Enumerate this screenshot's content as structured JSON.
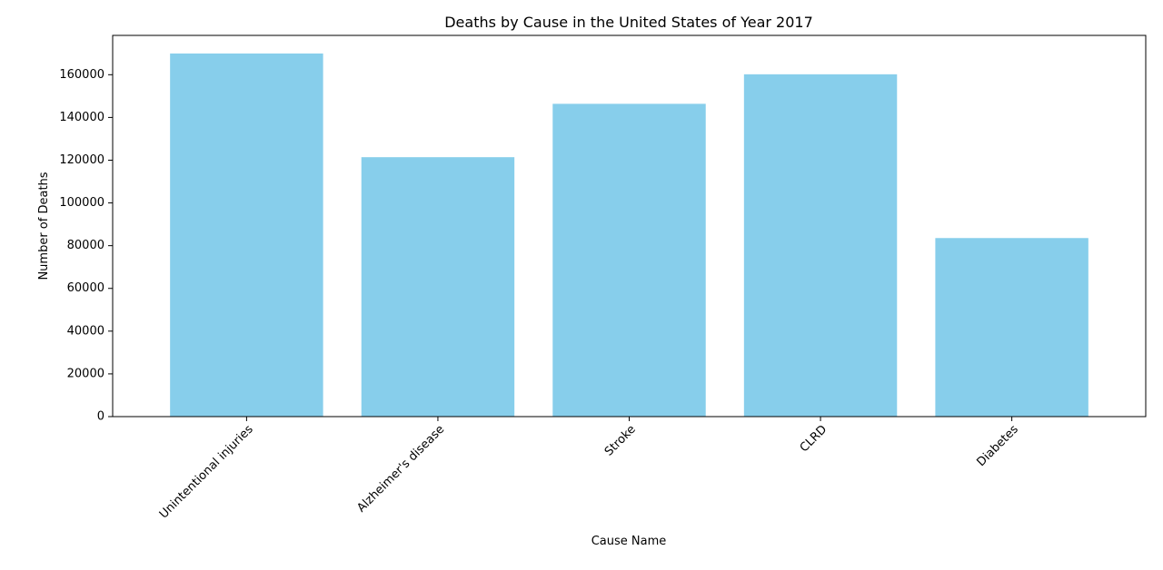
{
  "chart_data": {
    "type": "bar",
    "title": "Deaths by Cause in the United States of Year 2017",
    "xlabel": "Cause Name",
    "ylabel": "Number of Deaths",
    "categories": [
      "Unintentional injuries",
      "Alzheimer's disease",
      "Stroke",
      "CLRD",
      "Diabetes"
    ],
    "values": [
      169936,
      121404,
      146383,
      160201,
      83564
    ],
    "ylim": [
      0,
      178400
    ],
    "yticks": [
      0,
      20000,
      40000,
      60000,
      80000,
      100000,
      120000,
      140000,
      160000
    ],
    "ytick_labels": [
      "0",
      "20000",
      "40000",
      "60000",
      "80000",
      "100000",
      "120000",
      "140000",
      "160000"
    ],
    "bar_color": "#87ceeb",
    "grid": false,
    "legend": "none"
  }
}
